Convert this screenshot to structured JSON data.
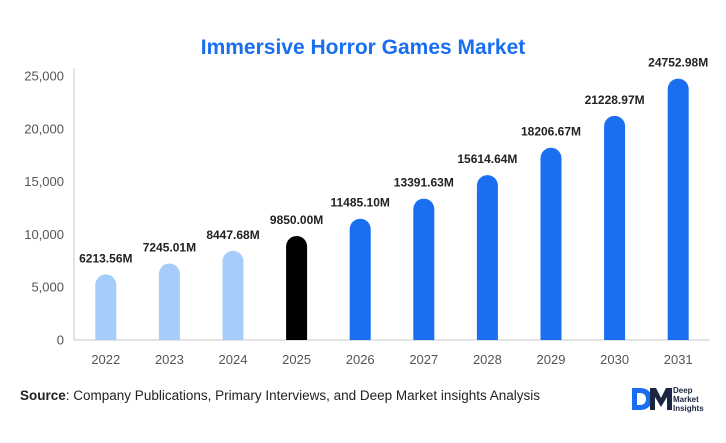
{
  "chart_data": {
    "type": "bar",
    "title": "Immersive Horror Games Market",
    "categories": [
      "2022",
      "2023",
      "2024",
      "2025",
      "2026",
      "2027",
      "2028",
      "2029",
      "2030",
      "2031"
    ],
    "values": [
      6213.56,
      7245.01,
      8447.68,
      9850.0,
      11485.1,
      13391.63,
      15614.64,
      18206.67,
      21228.97,
      24752.98
    ],
    "data_labels": [
      "6213.56M",
      "7245.01M",
      "8447.68M",
      "9850.00M",
      "11485.10M",
      "13391.63M",
      "15614.64M",
      "18206.67M",
      "21228.97M",
      "24752.98M"
    ],
    "y_ticks": [
      "0",
      "5,000",
      "10,000",
      "15,000",
      "20,000",
      "25,000"
    ],
    "y_tick_values": [
      0,
      5000,
      10000,
      15000,
      20000,
      25000
    ],
    "ylim": [
      0,
      25000
    ],
    "xlabel": "",
    "ylabel": "",
    "grid": false,
    "legend": "none",
    "colors": {
      "historical": "#a6cdf9",
      "base_year": "#000000",
      "forecast": "#1a6ff0",
      "title": "#1a6ff0",
      "axis": "#c8c8c8",
      "tick_text": "#555555",
      "label_text": "#222222"
    },
    "bar_color_groups": [
      "historical",
      "historical",
      "historical",
      "base_year",
      "forecast",
      "forecast",
      "forecast",
      "forecast",
      "forecast",
      "forecast"
    ]
  },
  "footer": {
    "source_label": "Source",
    "source_text": ": Company Publications, Primary Interviews, and Deep Market insights Analysis"
  },
  "logo": {
    "line1": "Deep",
    "line2": "Market",
    "line3": "Insights"
  }
}
